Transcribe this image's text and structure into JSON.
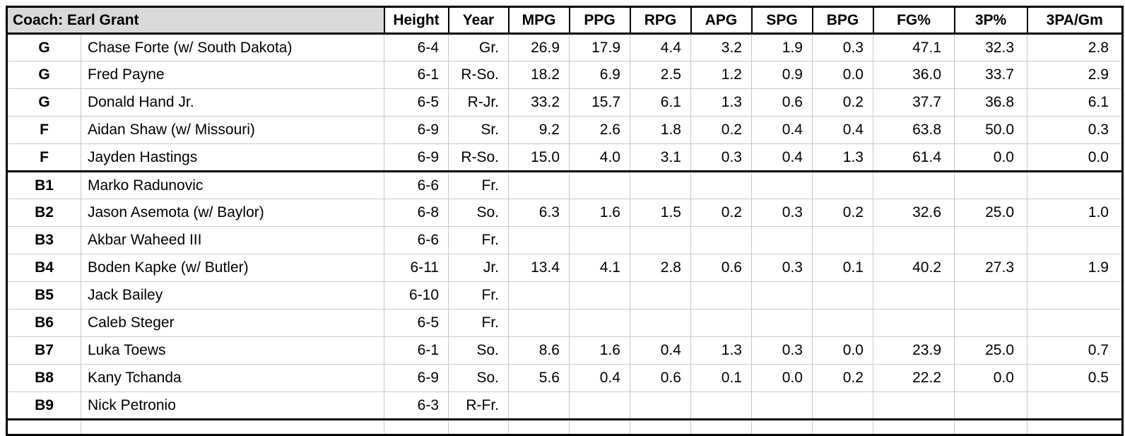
{
  "chart_data": {
    "type": "table",
    "title": "Coach: Earl Grant",
    "header": {
      "coach_label": "Coach: Earl Grant",
      "stat_columns": [
        "Height",
        "Year",
        "MPG",
        "PPG",
        "RPG",
        "APG",
        "SPG",
        "BPG",
        "FG%",
        "3P%",
        "3PA/Gm"
      ]
    },
    "players": [
      {
        "pos": "G",
        "name": "Chase Forte (w/ South Dakota)",
        "height": "6-4",
        "year": "Gr.",
        "stats": [
          "26.9",
          "17.9",
          "4.4",
          "3.2",
          "1.9",
          "0.3",
          "47.1",
          "32.3",
          "2.8"
        ],
        "separator_after": false
      },
      {
        "pos": "G",
        "name": "Fred Payne",
        "height": "6-1",
        "year": "R-So.",
        "stats": [
          "18.2",
          "6.9",
          "2.5",
          "1.2",
          "0.9",
          "0.0",
          "36.0",
          "33.7",
          "2.9"
        ],
        "separator_after": false
      },
      {
        "pos": "G",
        "name": "Donald Hand Jr.",
        "height": "6-5",
        "year": "R-Jr.",
        "stats": [
          "33.2",
          "15.7",
          "6.1",
          "1.3",
          "0.6",
          "0.2",
          "37.7",
          "36.8",
          "6.1"
        ],
        "separator_after": false
      },
      {
        "pos": "F",
        "name": "Aidan Shaw (w/ Missouri)",
        "height": "6-9",
        "year": "Sr.",
        "stats": [
          "9.2",
          "2.6",
          "1.8",
          "0.2",
          "0.4",
          "0.4",
          "63.8",
          "50.0",
          "0.3"
        ],
        "separator_after": false
      },
      {
        "pos": "F",
        "name": "Jayden Hastings",
        "height": "6-9",
        "year": "R-So.",
        "stats": [
          "15.0",
          "4.0",
          "3.1",
          "0.3",
          "0.4",
          "1.3",
          "61.4",
          "0.0",
          "0.0"
        ],
        "separator_after": true
      },
      {
        "pos": "B1",
        "name": "Marko Radunovic",
        "height": "6-6",
        "year": "Fr.",
        "stats": [
          "",
          "",
          "",
          "",
          "",
          "",
          "",
          "",
          ""
        ],
        "separator_after": false
      },
      {
        "pos": "B2",
        "name": "Jason Asemota (w/ Baylor)",
        "height": "6-8",
        "year": "So.",
        "stats": [
          "6.3",
          "1.6",
          "1.5",
          "0.2",
          "0.3",
          "0.2",
          "32.6",
          "25.0",
          "1.0"
        ],
        "separator_after": false
      },
      {
        "pos": "B3",
        "name": "Akbar Waheed III",
        "height": "6-6",
        "year": "Fr.",
        "stats": [
          "",
          "",
          "",
          "",
          "",
          "",
          "",
          "",
          ""
        ],
        "separator_after": false
      },
      {
        "pos": "B4",
        "name": "Boden Kapke (w/ Butler)",
        "height": "6-11",
        "year": "Jr.",
        "stats": [
          "13.4",
          "4.1",
          "2.8",
          "0.6",
          "0.3",
          "0.1",
          "40.2",
          "27.3",
          "1.9"
        ],
        "separator_after": false
      },
      {
        "pos": "B5",
        "name": "Jack Bailey",
        "height": "6-10",
        "year": "Fr.",
        "stats": [
          "",
          "",
          "",
          "",
          "",
          "",
          "",
          "",
          ""
        ],
        "separator_after": false
      },
      {
        "pos": "B6",
        "name": "Caleb Steger",
        "height": "6-5",
        "year": "Fr.",
        "stats": [
          "",
          "",
          "",
          "",
          "",
          "",
          "",
          "",
          ""
        ],
        "separator_after": false
      },
      {
        "pos": "B7",
        "name": "Luka Toews",
        "height": "6-1",
        "year": "So.",
        "stats": [
          "8.6",
          "1.6",
          "0.4",
          "1.3",
          "0.3",
          "0.0",
          "23.9",
          "25.0",
          "0.7"
        ],
        "separator_after": false
      },
      {
        "pos": "B8",
        "name": "Kany Tchanda",
        "height": "6-9",
        "year": "So.",
        "stats": [
          "5.6",
          "0.4",
          "0.6",
          "0.1",
          "0.0",
          "0.2",
          "22.2",
          "0.0",
          "0.5"
        ],
        "separator_after": false
      },
      {
        "pos": "B9",
        "name": "Nick Petronio",
        "height": "6-3",
        "year": "R-Fr.",
        "stats": [
          "",
          "",
          "",
          "",
          "",
          "",
          "",
          "",
          ""
        ],
        "separator_after": true
      }
    ],
    "layout": {
      "starter_rows": "1-5",
      "bench_rows": "6-14",
      "grid": "on"
    },
    "colors": {
      "coach_cell_fill": "#d9d9d9",
      "grid_line": "#c9c9c9",
      "section_border": "#000000",
      "text": "#000000",
      "background": "#ffffff"
    }
  }
}
